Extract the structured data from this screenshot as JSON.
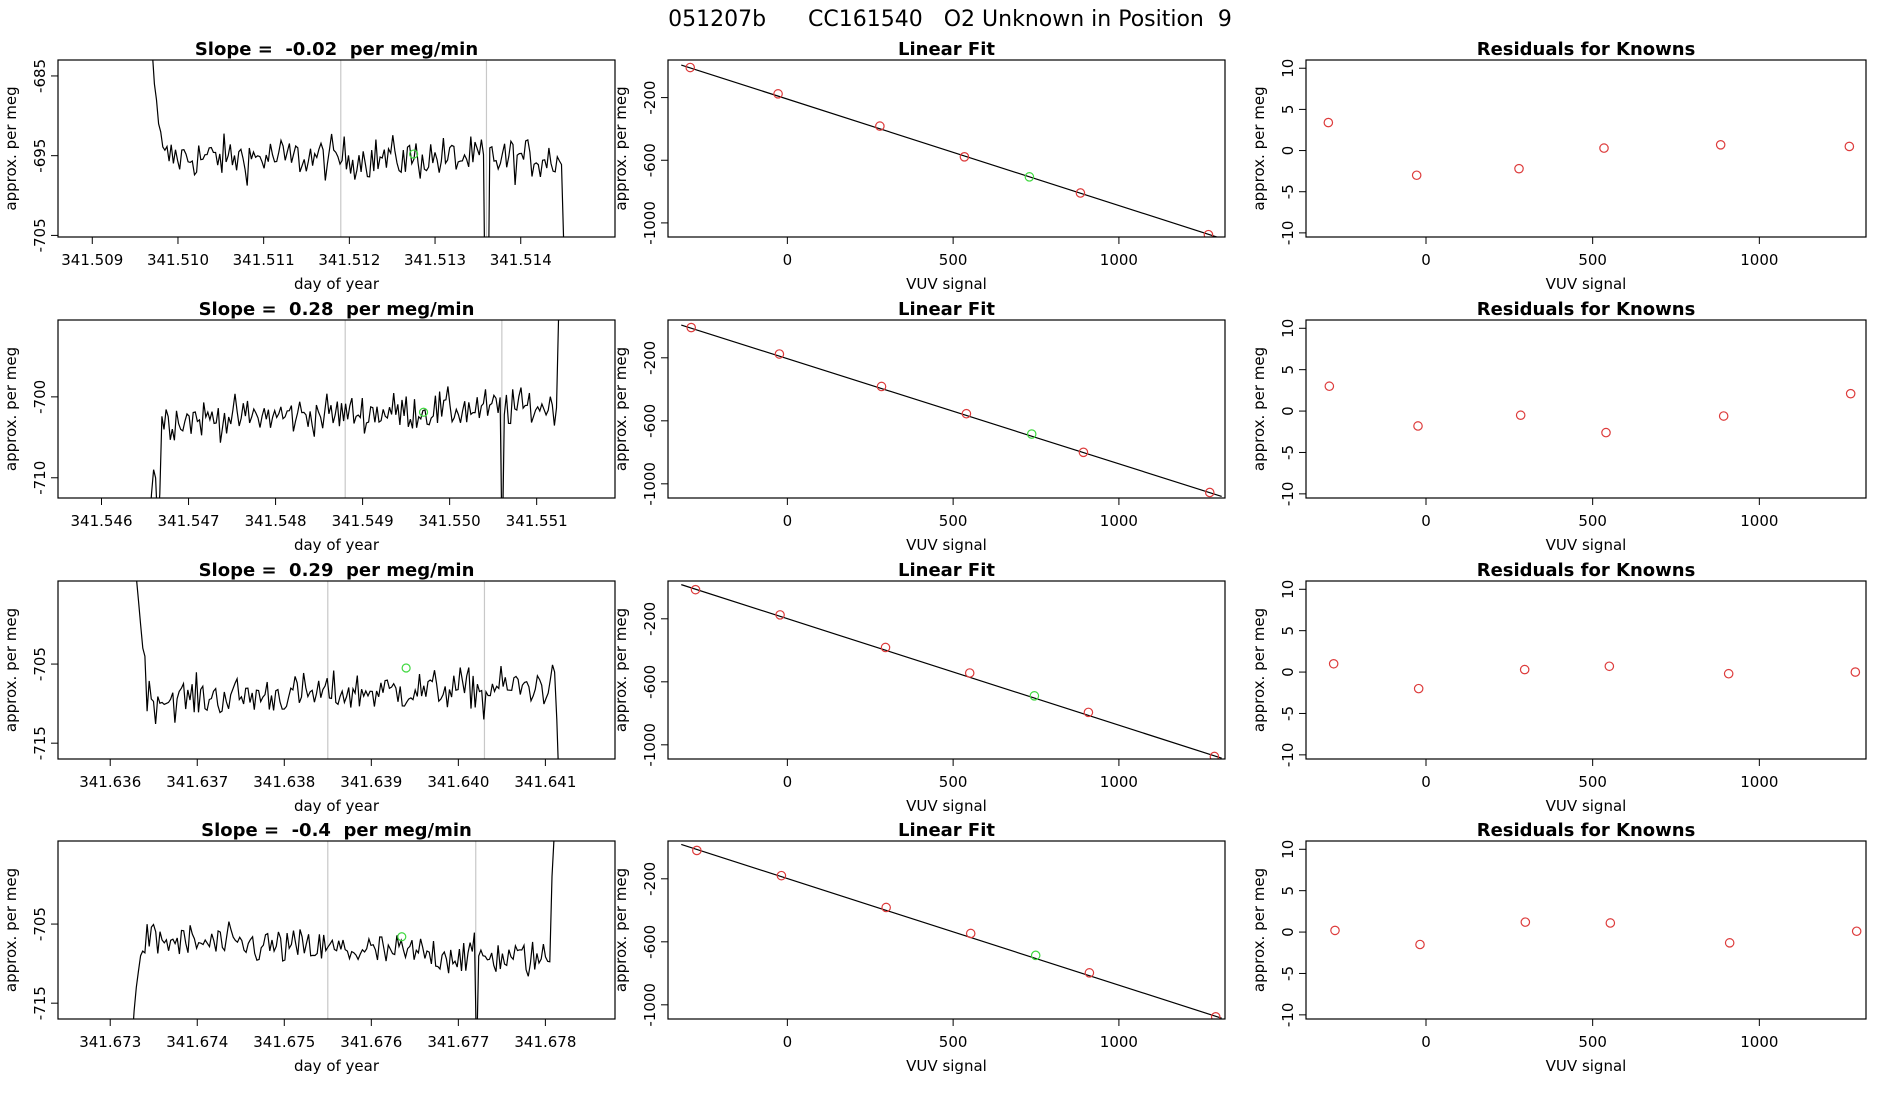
{
  "figure_title": "051207b      CC161540   O2 Unknown in Position  9",
  "labels": {
    "ts_xlabel": "day of year",
    "ts_ylabel": "approx. per meg",
    "fit_title": "Linear Fit",
    "fit_xlabel": "VUV signal",
    "fit_ylabel": "approx. per meg",
    "res_title": "Residuals for Knowns",
    "res_xlabel": "VUV signal",
    "res_ylabel": "approx. per meg"
  },
  "colors": {
    "line": "#000000",
    "known_point": "#dd3b3b",
    "unknown_point": "#3fd83f",
    "vline": "#c8c8c8"
  },
  "chart_data": [
    {
      "type": "line",
      "title": "Slope =  -0.02  per meg/min",
      "xlabel": "day of year",
      "ylabel": "approx. per meg",
      "xlim": [
        341.5086,
        341.5151
      ],
      "ylim": [
        -705.2,
        -683.0
      ],
      "xticks": [
        "341.509",
        "341.510",
        "341.511",
        "341.512",
        "341.513",
        "341.514"
      ],
      "xtick_values": [
        341.509,
        341.51,
        341.511,
        341.512,
        341.513,
        341.514
      ],
      "yticks": [
        "-705",
        "-695",
        "-685"
      ],
      "ytick_values": [
        -705,
        -695,
        -685
      ],
      "vlines": [
        341.5119,
        341.5136
      ],
      "start": 341.5097,
      "end": 341.51455,
      "baseline": -695.3,
      "noise": 1.9,
      "trend": -0.02,
      "head": [
        -682,
        -686,
        -688,
        -691,
        -692
      ],
      "tail_drop": [
        -705.5,
        -710
      ],
      "spike": {
        "x": 341.5136,
        "to": -720
      },
      "unknown_point": {
        "x": 341.51275,
        "y": -694.8
      }
    },
    {
      "type": "scatter",
      "title": "Linear Fit",
      "xlabel": "VUV signal",
      "ylabel": "approx. per meg",
      "xlim": [
        -360,
        1320
      ],
      "ylim": [
        -1090,
        40
      ],
      "xticks": [
        "0",
        "500",
        "1000"
      ],
      "xtick_values": [
        0,
        500,
        1000
      ],
      "yticks": [
        "-1000",
        "-600",
        "-200"
      ],
      "ytick_values": [
        -1000,
        -600,
        -200
      ],
      "knowns": [
        [
          -293,
          -8
        ],
        [
          -28,
          -176
        ],
        [
          279,
          -382
        ],
        [
          534,
          -578
        ],
        [
          884,
          -809
        ],
        [
          1270,
          -1075
        ]
      ],
      "unknown": [
        730,
        -706
      ],
      "fit_line": [
        [
          -320,
          8
        ],
        [
          1310,
          -1100
        ]
      ]
    },
    {
      "type": "scatter",
      "title": "Residuals for Knowns",
      "xlabel": "VUV signal",
      "ylabel": "approx. per meg",
      "xlim": [
        -360,
        1320
      ],
      "ylim": [
        -10.5,
        11
      ],
      "xticks": [
        "0",
        "500",
        "1000"
      ],
      "xtick_values": [
        0,
        500,
        1000
      ],
      "yticks": [
        "-10",
        "-5",
        "0",
        "5",
        "10"
      ],
      "ytick_values": [
        -10,
        -5,
        0,
        5,
        10
      ],
      "points": [
        [
          -293,
          3.4
        ],
        [
          -28,
          -3.0
        ],
        [
          279,
          -2.2
        ],
        [
          534,
          0.3
        ],
        [
          884,
          0.7
        ],
        [
          1270,
          0.5
        ]
      ]
    },
    {
      "type": "line",
      "title": "Slope =  0.28  per meg/min",
      "xlabel": "day of year",
      "ylabel": "approx. per meg",
      "xlim": [
        341.5455,
        341.5519
      ],
      "ylim": [
        -712.5,
        -690.5
      ],
      "xticks": [
        "341.546",
        "341.547",
        "341.548",
        "341.549",
        "341.550",
        "341.551"
      ],
      "xtick_values": [
        341.546,
        341.547,
        341.548,
        341.549,
        341.55,
        341.551
      ],
      "yticks": [
        "-710",
        "-700"
      ],
      "ytick_values": [
        -710,
        -700
      ],
      "vlines": [
        341.5488,
        341.5506
      ],
      "start": 341.54655,
      "end": 341.5513,
      "baseline": -702.0,
      "noise": 1.7,
      "trend": 0.28,
      "rise": [
        -716,
        -712,
        -709,
        -710,
        -716,
        -712
      ],
      "tail_rise": [
        -690,
        -684
      ],
      "spike": {
        "x": 341.5506,
        "to": -720
      },
      "unknown_point": {
        "x": 341.5497,
        "y": -701.9
      }
    },
    {
      "type": "scatter",
      "title": "Linear Fit",
      "xlabel": "VUV signal",
      "ylabel": "approx. per meg",
      "xlim": [
        -360,
        1320
      ],
      "ylim": [
        -1090,
        40
      ],
      "xticks": [
        "0",
        "500",
        "1000"
      ],
      "xtick_values": [
        0,
        500,
        1000
      ],
      "yticks": [
        "-1000",
        "-600",
        "-200"
      ],
      "ytick_values": [
        -1000,
        -600,
        -200
      ],
      "knowns": [
        [
          -290,
          -8
        ],
        [
          -24,
          -176
        ],
        [
          284,
          -382
        ],
        [
          540,
          -555
        ],
        [
          893,
          -800
        ],
        [
          1274,
          -1055
        ]
      ],
      "unknown": [
        737,
        -684
      ],
      "fit_line": [
        [
          -320,
          8
        ],
        [
          1310,
          -1080
        ]
      ]
    },
    {
      "type": "scatter",
      "title": "Residuals for Knowns",
      "xlabel": "VUV signal",
      "ylabel": "approx. per meg",
      "xlim": [
        -360,
        1320
      ],
      "ylim": [
        -10.5,
        11
      ],
      "xticks": [
        "0",
        "500",
        "1000"
      ],
      "xtick_values": [
        0,
        500,
        1000
      ],
      "yticks": [
        "-10",
        "-5",
        "0",
        "5",
        "10"
      ],
      "ytick_values": [
        -10,
        -5,
        0,
        5,
        10
      ],
      "points": [
        [
          -290,
          3.0
        ],
        [
          -24,
          -1.8
        ],
        [
          284,
          -0.5
        ],
        [
          540,
          -2.6
        ],
        [
          893,
          -0.6
        ],
        [
          1274,
          2.1
        ]
      ]
    },
    {
      "type": "line",
      "title": "Slope =  0.29  per meg/min",
      "xlabel": "day of year",
      "ylabel": "approx. per meg",
      "xlim": [
        341.6354,
        341.6418
      ],
      "ylim": [
        -717.0,
        -694.5
      ],
      "xticks": [
        "341.636",
        "341.637",
        "341.638",
        "341.639",
        "341.640",
        "341.641"
      ],
      "xtick_values": [
        341.636,
        341.637,
        341.638,
        341.639,
        341.64,
        341.641
      ],
      "yticks": [
        "-715",
        "-705"
      ],
      "ytick_values": [
        -715,
        -705
      ],
      "vlines": [
        341.6385,
        341.6403
      ],
      "start": 341.6363,
      "end": 341.64118,
      "baseline": -708.6,
      "noise": 1.8,
      "trend": 0.29,
      "head": [
        -694,
        -697,
        -700,
        -703,
        -704
      ],
      "tail_drop": [
        -706,
        -712,
        -720
      ],
      "dip": {
        "x": 341.6403,
        "to": -712
      },
      "unknown_point": {
        "x": 341.6394,
        "y": -705.5
      }
    },
    {
      "type": "scatter",
      "title": "Linear Fit",
      "xlabel": "VUV signal",
      "ylabel": "approx. per meg",
      "xlim": [
        -360,
        1320
      ],
      "ylim": [
        -1090,
        40
      ],
      "xticks": [
        "0",
        "500",
        "1000"
      ],
      "xtick_values": [
        0,
        500,
        1000
      ],
      "yticks": [
        "-1000",
        "-600",
        "-200"
      ],
      "ytick_values": [
        -1000,
        -600,
        -200
      ],
      "knowns": [
        [
          -277,
          -15
        ],
        [
          -22,
          -175
        ],
        [
          296,
          -382
        ],
        [
          550,
          -544
        ],
        [
          908,
          -794
        ],
        [
          1288,
          -1074
        ]
      ],
      "unknown": [
        745,
        -689
      ],
      "fit_line": [
        [
          -320,
          17
        ],
        [
          1310,
          -1085
        ]
      ]
    },
    {
      "type": "scatter",
      "title": "Residuals for Knowns",
      "xlabel": "VUV signal",
      "ylabel": "approx. per meg",
      "xlim": [
        -360,
        1320
      ],
      "ylim": [
        -10.5,
        11
      ],
      "xticks": [
        "0",
        "500",
        "1000"
      ],
      "xtick_values": [
        0,
        500,
        1000
      ],
      "yticks": [
        "-10",
        "-5",
        "0",
        "5",
        "10"
      ],
      "ytick_values": [
        -10,
        -5,
        0,
        5,
        10
      ],
      "points": [
        [
          -277,
          1.0
        ],
        [
          -22,
          -2.0
        ],
        [
          296,
          0.3
        ],
        [
          550,
          0.7
        ],
        [
          908,
          -0.2
        ],
        [
          1288,
          0.0
        ]
      ]
    },
    {
      "type": "line",
      "title": "Slope =  -0.4  per meg/min",
      "xlabel": "day of year",
      "ylabel": "approx. per meg",
      "xlim": [
        341.6724,
        341.6788
      ],
      "ylim": [
        -717.0,
        -694.5
      ],
      "xticks": [
        "341.673",
        "341.674",
        "341.675",
        "341.676",
        "341.677",
        "341.678"
      ],
      "xtick_values": [
        341.673,
        341.674,
        341.675,
        341.676,
        341.677,
        341.678
      ],
      "yticks": [
        "-715",
        "-705"
      ],
      "ytick_values": [
        -715,
        -705
      ],
      "vlines": [
        341.6755,
        341.6772
      ],
      "start": 341.67325,
      "end": 341.67815,
      "baseline": -708.3,
      "noise": 1.7,
      "trend": -0.4,
      "rise": [
        -720,
        -716,
        -713,
        -711,
        -709
      ],
      "tail_rise": [
        -699,
        -694,
        -688
      ],
      "spike": {
        "x": 341.6772,
        "to": -722
      },
      "unknown_point": {
        "x": 341.67635,
        "y": -706.6
      }
    },
    {
      "type": "scatter",
      "title": "Linear Fit",
      "xlabel": "VUV signal",
      "ylabel": "approx. per meg",
      "xlim": [
        -360,
        1320
      ],
      "ylim": [
        -1090,
        40
      ],
      "xticks": [
        "0",
        "500",
        "1000"
      ],
      "xtick_values": [
        0,
        500,
        1000
      ],
      "yticks": [
        "-1000",
        "-600",
        "-200"
      ],
      "ytick_values": [
        -1000,
        -600,
        -200
      ],
      "knowns": [
        [
          -273,
          -20
        ],
        [
          -18,
          -180
        ],
        [
          298,
          -382
        ],
        [
          553,
          -547
        ],
        [
          911,
          -797
        ],
        [
          1292,
          -1076
        ]
      ],
      "unknown": [
        749,
        -686
      ],
      "fit_line": [
        [
          -320,
          18
        ],
        [
          1310,
          -1085
        ]
      ]
    },
    {
      "type": "scatter",
      "title": "Residuals for Knowns",
      "xlabel": "VUV signal",
      "ylabel": "approx. per meg",
      "xlim": [
        -360,
        1320
      ],
      "ylim": [
        -10.5,
        11
      ],
      "xticks": [
        "0",
        "500",
        "1000"
      ],
      "xtick_values": [
        0,
        500,
        1000
      ],
      "points": [
        [
          -273,
          0.2
        ],
        [
          -18,
          -1.5
        ],
        [
          298,
          1.2
        ],
        [
          553,
          1.1
        ],
        [
          911,
          -1.3
        ],
        [
          1292,
          0.1
        ]
      ],
      "yticks": [
        "-10",
        "-5",
        "0",
        "5",
        "10"
      ],
      "ytick_values": [
        -10,
        -5,
        0,
        5,
        10
      ]
    }
  ]
}
